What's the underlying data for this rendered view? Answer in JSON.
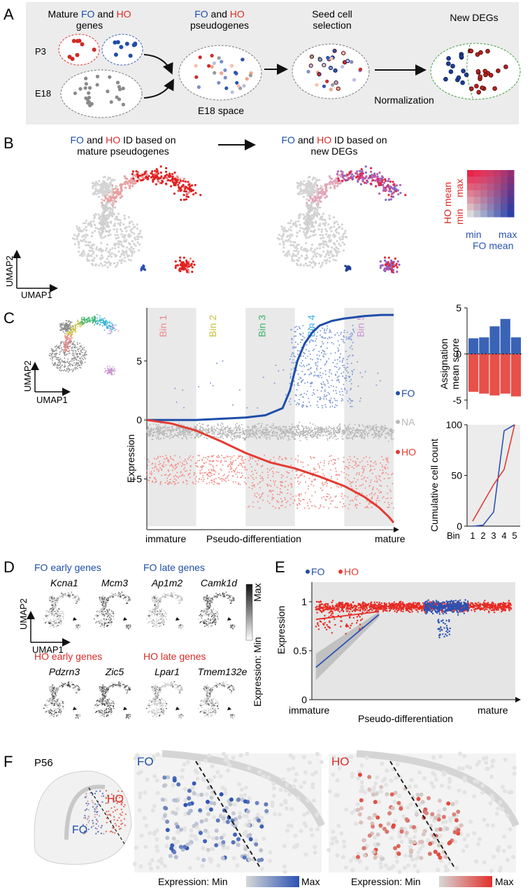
{
  "panelA": {
    "letter": "A",
    "mature_line": {
      "p1": "Mature ",
      "fo": "FO",
      "p2": " and ",
      "ho": "HO"
    },
    "mature_line2": "genes",
    "pseudo_line": {
      "fo": "FO",
      "p2": " and ",
      "ho": "HO"
    },
    "pseudo_line2": "pseudogenes",
    "seed_line1": "Seed cell",
    "seed_line2": "selection",
    "newdegs": "New DEGs",
    "p3": "P3",
    "e18": "E18",
    "e18space": "E18 space",
    "normalization": "Normalization"
  },
  "panelB": {
    "letter": "B",
    "left_title1": {
      "fo": "FO",
      "p2": " and ",
      "ho": "HO",
      "p3": " ID based on"
    },
    "left_title2": "mature pseudogenes",
    "right_title1": {
      "fo": "FO",
      "p2": " and ",
      "ho": "HO",
      "p3": " ID based on"
    },
    "right_title2": "new DEGs",
    "umap2": "UMAP2",
    "umap1": "UMAP1",
    "legend": {
      "ho_mean": "HO mean",
      "max_y": "max",
      "min_y": "min",
      "min_x": "min",
      "max_x": "max",
      "fo_mean": "FO mean"
    }
  },
  "panelC": {
    "letter": "C",
    "umap2": "UMAP2",
    "umap1": "UMAP1",
    "ylabel": "Expression",
    "xlabel": "Pseudo-differentiation",
    "immature": "immature",
    "mature": "mature",
    "series": {
      "fo": "FO",
      "na": "NA",
      "ho": "HO"
    },
    "colors": {
      "fo": "#1f4ea8",
      "na": "#b9b9b9",
      "ho": "#e23b32"
    },
    "bin_label": "Bin",
    "bar_ylabel1": "Assignation",
    "bar_ylabel2": "mean score",
    "cum_ylabel": "Cumulative cell count"
  },
  "chart_data": [
    {
      "id": "C_expression",
      "type": "scatter",
      "title": "",
      "xlabel": "Pseudo-differentiation",
      "ylabel": "Expression",
      "xlim": [
        0,
        100
      ],
      "ylim": [
        -9,
        9.5
      ],
      "yticks": [
        -5,
        0,
        5
      ],
      "ytick_labels": [
        "−5",
        "0",
        "5"
      ],
      "bins": [
        {
          "label": "Bin 1",
          "from": 0,
          "to": 20,
          "color": "#f08a8a"
        },
        {
          "label": "Bin 2",
          "from": 20,
          "to": 40,
          "color": "#c9c341"
        },
        {
          "label": "Bin 3",
          "from": 40,
          "to": 60,
          "color": "#3fb56b"
        },
        {
          "label": "Bin 4",
          "from": 60,
          "to": 80,
          "color": "#37b3e0"
        },
        {
          "label": "Bin 5",
          "from": 80,
          "to": 100,
          "color": "#c995d0"
        }
      ],
      "series": [
        {
          "name": "FO",
          "x": [
            0,
            10,
            20,
            30,
            40,
            48,
            55,
            58,
            61,
            64,
            67,
            70,
            75,
            80,
            88,
            95,
            100
          ],
          "y": [
            0,
            0,
            0,
            0.1,
            0.2,
            0.4,
            1.0,
            2.5,
            5.0,
            6.5,
            7.4,
            8.0,
            8.4,
            8.6,
            8.8,
            8.9,
            8.9
          ]
        },
        {
          "name": "HO",
          "x": [
            0,
            10,
            20,
            30,
            40,
            50,
            60,
            70,
            80,
            88,
            94,
            98,
            100
          ],
          "y": [
            0,
            -0.3,
            -0.9,
            -1.8,
            -2.8,
            -3.6,
            -4.1,
            -4.8,
            -5.6,
            -6.5,
            -7.4,
            -8.2,
            -8.7
          ]
        }
      ]
    },
    {
      "id": "C_assignation",
      "type": "bar",
      "categories": [
        "1",
        "2",
        "3",
        "4",
        "5"
      ],
      "ylabel": "Assignation mean score",
      "ylim": [
        -6,
        5
      ],
      "yticks": [
        -5,
        0,
        5
      ],
      "ytick_labels": [
        "-5",
        "0",
        "5"
      ],
      "series": [
        {
          "name": "FO",
          "values": [
            1.7,
            1.8,
            3.0,
            3.8,
            1.8
          ]
        },
        {
          "name": "HO",
          "values": [
            -4.1,
            -4.3,
            -4.5,
            -4.3,
            -4.6
          ]
        }
      ]
    },
    {
      "id": "C_cumulative",
      "type": "line",
      "categories": [
        "1",
        "2",
        "3",
        "4",
        "5"
      ],
      "xlabel": "Bin",
      "ylabel": "Cumulative cell count",
      "ylim": [
        0,
        100
      ],
      "yticks": [
        0,
        50,
        100
      ],
      "ytick_labels": [
        "0",
        "50",
        "100"
      ],
      "series": [
        {
          "name": "FO",
          "values": [
            0,
            1,
            14,
            94,
            100
          ]
        },
        {
          "name": "HO",
          "values": [
            5,
            23,
            41,
            56,
            100
          ]
        }
      ]
    },
    {
      "id": "E_expression",
      "type": "scatter",
      "xlabel": "Pseudo-differentiation",
      "ylabel": "Expression",
      "xlim": [
        0,
        100
      ],
      "ylim": [
        0,
        1.2
      ],
      "yticks": [
        0,
        0.5,
        1
      ],
      "ytick_labels": [
        "0",
        "0.5",
        "1"
      ],
      "series": [
        {
          "name": "FO",
          "fit_x": [
            2,
            33
          ],
          "fit_y": [
            0.33,
            0.87
          ]
        },
        {
          "name": "HO",
          "fit_x": [
            2,
            33
          ],
          "fit_y": [
            0.82,
            0.9
          ]
        }
      ]
    }
  ],
  "panelD": {
    "letter": "D",
    "fo_early": "FO early genes",
    "fo_late": "FO late genes",
    "ho_early": "HO early genes",
    "ho_late": "HO late genes",
    "genes": [
      "Kcna1",
      "Mcm3",
      "Ap1m2",
      "Camk1d",
      "Pdzrn3",
      "Zic5",
      "Lpar1",
      "Tmem132e"
    ],
    "umap2": "UMAP2",
    "umap1": "UMAP1",
    "expr_label": "Expression: Min",
    "expr_max": "Max"
  },
  "panelE": {
    "letter": "E",
    "fo": "FO",
    "ho": "HO",
    "ylabel": "Expression",
    "xlabel": "Pseudo-differentiation",
    "immature": "immature",
    "mature": "mature"
  },
  "panelF": {
    "letter": "F",
    "p56": "P56",
    "ho": "HO",
    "fo": "FO",
    "fo_title": "FO",
    "ho_title": "HO",
    "expr_min": "Expression: Min",
    "expr_max": "Max"
  }
}
